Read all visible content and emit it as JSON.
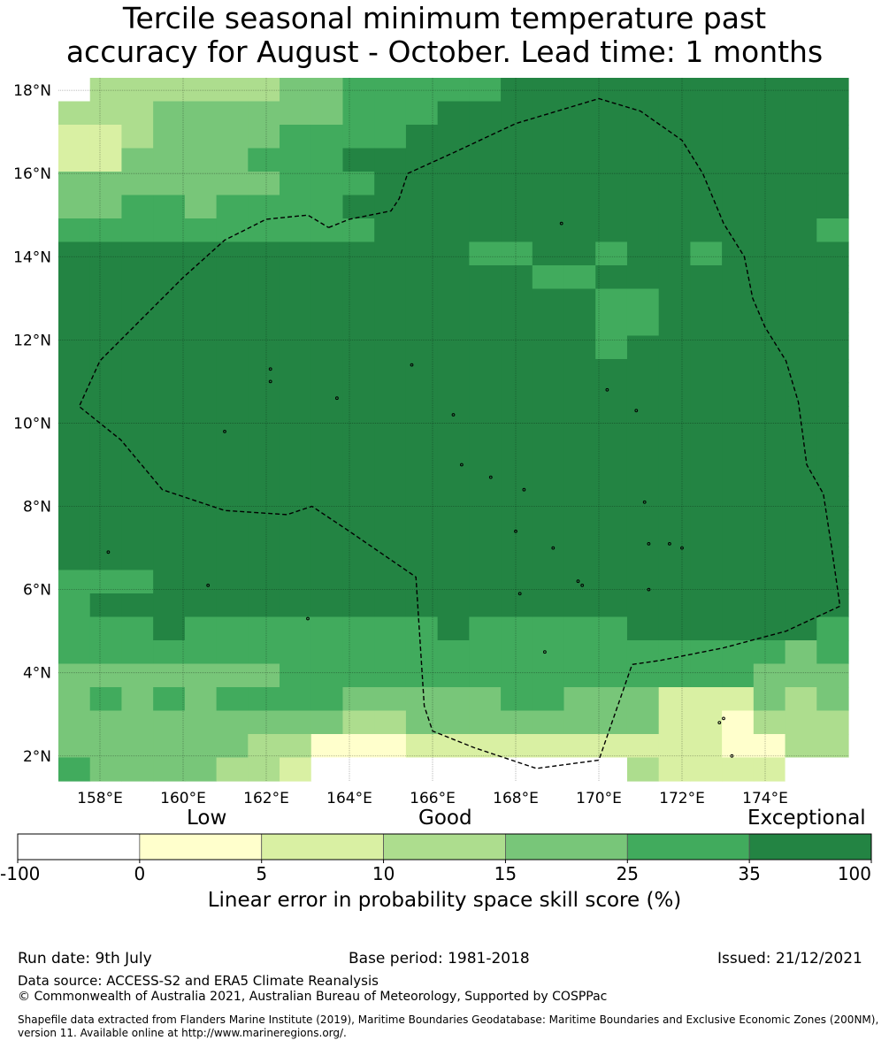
{
  "title": {
    "line1": "Tercile seasonal minimum temperature past",
    "line2": "accuracy for August - October. Lead time: 1 months"
  },
  "map": {
    "lon_range": [
      157,
      176
    ],
    "lat_range": [
      1.4,
      18.3
    ],
    "lon_ticks": [
      {
        "value": 158,
        "label": "158°E"
      },
      {
        "value": 160,
        "label": "160°E"
      },
      {
        "value": 162,
        "label": "162°E"
      },
      {
        "value": 164,
        "label": "164°E"
      },
      {
        "value": 166,
        "label": "166°E"
      },
      {
        "value": 168,
        "label": "168°E"
      },
      {
        "value": 170,
        "label": "170°E"
      },
      {
        "value": 172,
        "label": "172°E"
      },
      {
        "value": 174,
        "label": "174°E"
      }
    ],
    "lat_ticks": [
      {
        "value": 18,
        "label": "18°N"
      },
      {
        "value": 16,
        "label": "16°N"
      },
      {
        "value": 14,
        "label": "14°N"
      },
      {
        "value": 12,
        "label": "12°N"
      },
      {
        "value": 10,
        "label": "10°N"
      },
      {
        "value": 8,
        "label": "8°N"
      },
      {
        "value": 6,
        "label": "6°N"
      },
      {
        "value": 4,
        "label": "4°N"
      },
      {
        "value": 2,
        "label": "2°N"
      }
    ],
    "grid": true,
    "skill_level_colors": [
      "#ffffff",
      "#ffffcc",
      "#d9f0a3",
      "#addd8e",
      "#78c679",
      "#41ab5d",
      "#238443"
    ],
    "skill_grid_note": "category index per 0.833deg cell, rows north to south, cols west to east",
    "skill_grid": [
      "0333333445555566666666666",
      "3334444445556666666666666",
      "2234444555566666666666666",
      "2244445556666666666666666",
      "4444444555666666666666666",
      "4455455556666666666666666",
      "5555555555666666666666665",
      "6666666666666556656656666",
      "6666666666666665566666666",
      "6666666666666666655666666",
      "6666666666666666655666666",
      "6666666666666666656666666",
      "6666666666666666666666666",
      "6666666666666666666666666",
      "6666666666666666666666666",
      "6666666666666666666666666",
      "6666666666666666666666666",
      "6666666666666666666666666",
      "6666666666666666666666666",
      "6666666666666666666666666",
      "6666666666666666666666666",
      "5556666666666666666666666",
      "5666666666666666666666666",
      "5556555555556555556666665",
      "5555555555555555555555545",
      "4444444555555555555555444",
      "4545455554444455444222434",
      "4444444443344444444221333",
      "4444443311122222222221133",
      "5444433200000000003222200"
    ],
    "boundary_lonlat": [
      [
        163.5,
        14.7
      ],
      [
        164.0,
        14.9
      ],
      [
        165.0,
        15.1
      ],
      [
        165.2,
        15.4
      ],
      [
        165.4,
        16.0
      ],
      [
        166.5,
        16.5
      ],
      [
        168.0,
        17.2
      ],
      [
        170.0,
        17.8
      ],
      [
        171.0,
        17.5
      ],
      [
        172.0,
        16.8
      ],
      [
        172.5,
        16.0
      ],
      [
        173.0,
        14.8
      ],
      [
        173.5,
        14.0
      ],
      [
        173.7,
        13.0
      ],
      [
        174.0,
        12.3
      ],
      [
        174.5,
        11.5
      ],
      [
        174.8,
        10.5
      ],
      [
        175.0,
        9.0
      ],
      [
        175.4,
        8.3
      ],
      [
        175.6,
        7.0
      ],
      [
        175.8,
        5.6
      ],
      [
        174.5,
        5.0
      ],
      [
        173.0,
        4.6
      ],
      [
        171.5,
        4.3
      ],
      [
        170.8,
        4.2
      ],
      [
        170.0,
        1.9
      ],
      [
        168.5,
        1.7
      ],
      [
        167.0,
        2.2
      ],
      [
        166.0,
        2.6
      ],
      [
        165.8,
        3.2
      ],
      [
        165.6,
        6.3
      ],
      [
        164.0,
        7.4
      ],
      [
        163.1,
        8.0
      ],
      [
        162.5,
        7.8
      ],
      [
        161.0,
        7.9
      ],
      [
        159.5,
        8.4
      ],
      [
        158.5,
        9.6
      ],
      [
        157.5,
        10.4
      ],
      [
        158.0,
        11.5
      ],
      [
        159.0,
        12.5
      ],
      [
        160.0,
        13.5
      ],
      [
        161.0,
        14.4
      ],
      [
        162.0,
        14.9
      ],
      [
        163.0,
        15.0
      ],
      [
        163.5,
        14.7
      ]
    ],
    "islands_lonlat": [
      [
        158.2,
        6.9
      ],
      [
        163.0,
        5.3
      ],
      [
        160.6,
        6.1
      ],
      [
        161.0,
        9.8
      ],
      [
        162.1,
        11.0
      ],
      [
        162.1,
        11.3
      ],
      [
        163.7,
        10.6
      ],
      [
        165.5,
        11.4
      ],
      [
        166.5,
        10.2
      ],
      [
        166.7,
        9.0
      ],
      [
        167.4,
        8.7
      ],
      [
        168.2,
        8.4
      ],
      [
        168.0,
        7.4
      ],
      [
        168.9,
        7.0
      ],
      [
        169.5,
        6.2
      ],
      [
        169.6,
        6.1
      ],
      [
        170.2,
        10.8
      ],
      [
        171.2,
        6.0
      ],
      [
        171.2,
        7.1
      ],
      [
        171.7,
        7.1
      ],
      [
        172.0,
        7.0
      ],
      [
        172.9,
        2.8
      ],
      [
        173.0,
        2.9
      ],
      [
        173.2,
        2.0
      ],
      [
        168.7,
        4.5
      ],
      [
        168.1,
        5.9
      ],
      [
        170.9,
        10.3
      ],
      [
        171.1,
        8.1
      ],
      [
        169.1,
        14.8
      ]
    ]
  },
  "colorbar": {
    "top_labels": [
      "Low",
      "Good",
      "Exceptional"
    ],
    "tick_labels": [
      "-100",
      "0",
      "5",
      "10",
      "15",
      "25",
      "35",
      "100"
    ],
    "colors": [
      "#ffffff",
      "#ffffcc",
      "#d9f0a3",
      "#addd8e",
      "#78c679",
      "#41ab5d",
      "#238443"
    ],
    "title": "Linear error in probability space skill score (%)"
  },
  "footer": {
    "run_date": "Run date: 9th July",
    "base_period": "Base period: 1981-2018",
    "issued": "Issued: 21/12/2021",
    "data_source": "Data source: ACCESS-S2 and ERA5 Climate Reanalysis",
    "copyright": "© Commonwealth of Australia 2021, Australian Bureau of Meteorology, Supported by COSPPac",
    "shapefile": "Shapefile data extracted from Flanders Marine Institute (2019), Maritime Boundaries Geodatabase: Maritime Boundaries and Exclusive Economic Zones (200NM), version 11. Available online at http://www.marineregions.org/."
  }
}
